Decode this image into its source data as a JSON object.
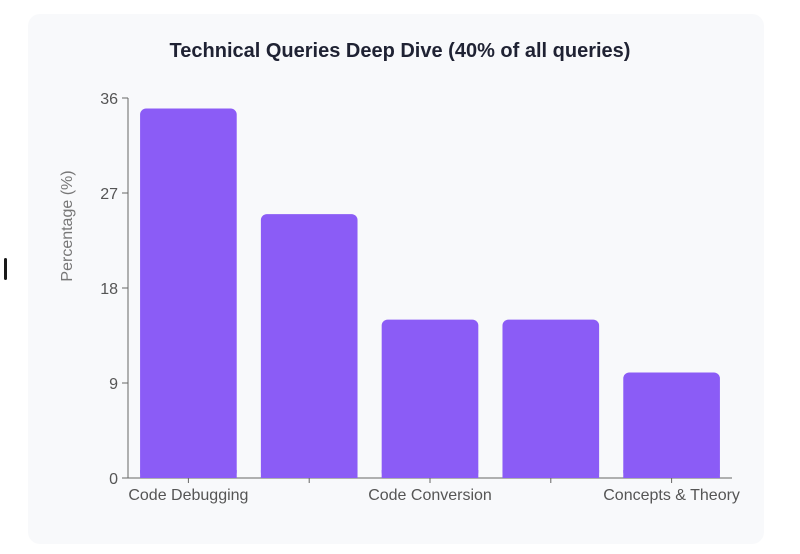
{
  "chart_data": {
    "type": "bar",
    "title": "Technical Queries Deep Dive (40% of all queries)",
    "xlabel": "",
    "ylabel": "Percentage (%)",
    "categories": [
      "Code Debugging",
      "",
      "Code Conversion",
      "",
      "Concepts & Theory"
    ],
    "values": [
      35,
      25,
      15,
      15,
      10
    ],
    "ylim": [
      0,
      36
    ],
    "yticks": [
      0,
      9,
      18,
      27,
      36
    ],
    "bar_color": "#8b5cf6",
    "grid": false,
    "legend": "none"
  }
}
